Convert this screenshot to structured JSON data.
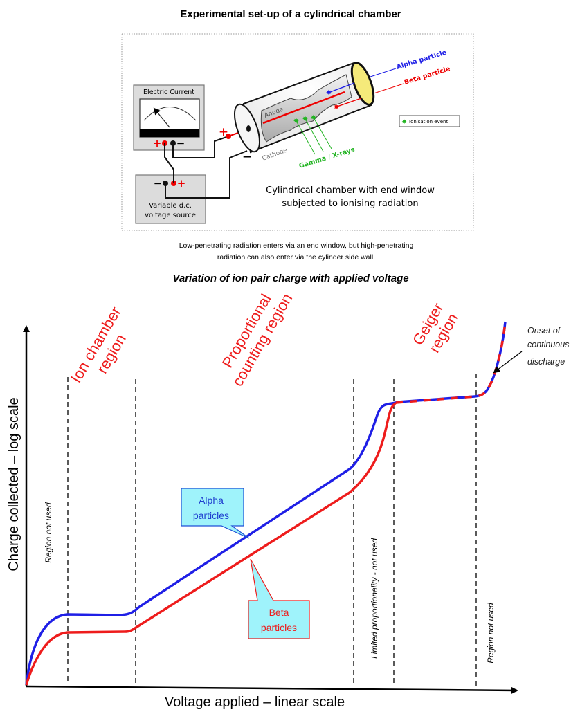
{
  "setup": {
    "title": "Experimental set-up of a cylindrical chamber",
    "meter_label": "Electric Current",
    "source_label_1": "Variable d.c.",
    "source_label_2": "voltage source",
    "plus": "+",
    "minus": "−",
    "anode": "Anode",
    "cathode": "Cathode",
    "alpha": "Alpha particle",
    "beta": "Beta particle",
    "gamma": "Gamma / X-rays",
    "legend": "Ionisation event",
    "caption_1": "Cylindrical chamber with end window",
    "caption_2": "subjected to ionising radiation",
    "note_1": "Low-penetrating radiation enters via an end window, but high-penetrating",
    "note_2": "radiation can also enter via the cylinder side wall."
  },
  "graph": {
    "title": "Variation of ion pair charge with applied voltage",
    "ylabel": "Charge collected – log scale",
    "xlabel": "Voltage applied – linear scale",
    "regions": {
      "ion_1": "Ion chamber",
      "ion_2": "region",
      "prop_1": "Proportional",
      "prop_2": "counting region",
      "geiger_1": "Geiger",
      "geiger_2": "region",
      "not_used_left": "Region  not  used",
      "limited": "Limited  proportionality  -  not  used",
      "not_used_right": "Region  not  used"
    },
    "onset": [
      "Onset of",
      "continuous",
      "discharge"
    ],
    "alpha_callout": [
      "Alpha",
      "particles"
    ],
    "beta_callout": [
      "Beta",
      "particles"
    ],
    "colors": {
      "alpha": "#1f1fe6",
      "beta": "#ee1c1c",
      "region_label": "#ee1c1c",
      "callout_fill": "#9ff3fb",
      "gamma": "#22b422"
    }
  }
}
